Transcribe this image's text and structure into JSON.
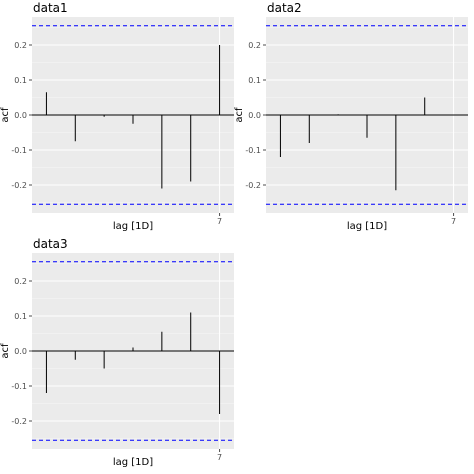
{
  "chart_data": [
    {
      "type": "bar",
      "title": "data1",
      "xlabel": "lag [1D]",
      "ylabel": "acf",
      "x": [
        1,
        2,
        3,
        4,
        5,
        6,
        7
      ],
      "values": [
        0.065,
        -0.075,
        -0.005,
        -0.025,
        -0.21,
        -0.19,
        0.2
      ],
      "yticks": [
        "0.2",
        "0.1",
        "0.0",
        "-0.1",
        "-0.2"
      ],
      "ytick_values": [
        0.2,
        0.1,
        0.0,
        -0.1,
        -0.2
      ],
      "xticks": [
        "7"
      ],
      "xtick_values": [
        7
      ],
      "confidence_bounds": [
        0.255,
        -0.255
      ],
      "xlim": [
        0.5,
        7.5
      ],
      "ylim": [
        -0.28,
        0.28
      ],
      "grid": true
    },
    {
      "type": "bar",
      "title": "data2",
      "xlabel": "lag [1D]",
      "ylabel": "acf",
      "x": [
        1,
        2,
        3,
        4,
        5,
        6,
        7
      ],
      "values": [
        -0.12,
        -0.08,
        0.002,
        -0.065,
        -0.215,
        0.05,
        0.0
      ],
      "yticks": [
        "0.2",
        "0.1",
        "0.0",
        "-0.1",
        "-0.2"
      ],
      "ytick_values": [
        0.2,
        0.1,
        0.0,
        -0.1,
        -0.2
      ],
      "xticks": [
        "7"
      ],
      "xtick_values": [
        7
      ],
      "confidence_bounds": [
        0.255,
        -0.255
      ],
      "xlim": [
        0.5,
        7.5
      ],
      "ylim": [
        -0.28,
        0.28
      ],
      "grid": true
    },
    {
      "type": "bar",
      "title": "data3",
      "xlabel": "lag [1D]",
      "ylabel": "acf",
      "x": [
        1,
        2,
        3,
        4,
        5,
        6,
        7
      ],
      "values": [
        -0.12,
        -0.025,
        -0.05,
        0.01,
        0.055,
        0.11,
        -0.18
      ],
      "yticks": [
        "0.2",
        "0.1",
        "0.0",
        "-0.1",
        "-0.2"
      ],
      "ytick_values": [
        0.2,
        0.1,
        0.0,
        -0.1,
        -0.2
      ],
      "xticks": [
        "7"
      ],
      "xtick_values": [
        7
      ],
      "confidence_bounds": [
        0.255,
        -0.255
      ],
      "xlim": [
        0.5,
        7.5
      ],
      "ylim": [
        -0.28,
        0.28
      ],
      "grid": true
    }
  ],
  "colors": {
    "panel_background": "#EBEBEB",
    "grid_major": "#FFFFFF",
    "bar": "#000000",
    "zero_line": "#000000",
    "confidence_line": "#0000FF",
    "text": "#000000",
    "axis_text": "#4D4D4D"
  }
}
